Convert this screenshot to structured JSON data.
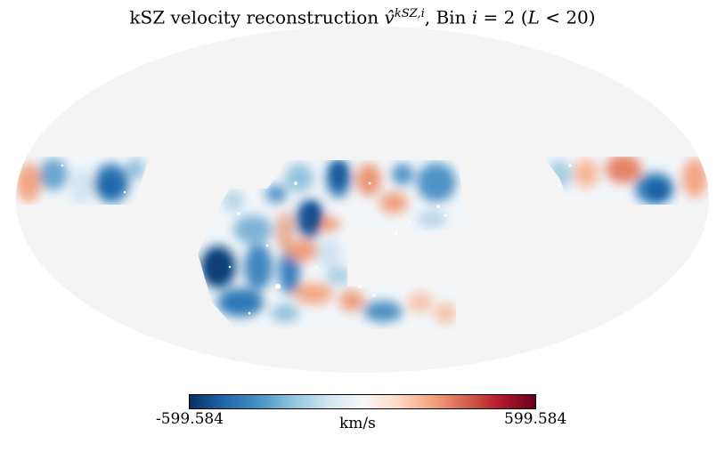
{
  "title": {
    "prefix": "kSZ velocity reconstruction ",
    "symbol": "v̂",
    "superscript": "kSZ,i",
    "suffix": ", Bin ",
    "bin_var": "i",
    "bin_eq": " = 2 (",
    "limit_var": "L",
    "limit_text": " < 20)"
  },
  "colorbar": {
    "min_label": "-599.584",
    "max_label": "599.584",
    "unit": "km/s",
    "colormap": [
      "#053061",
      "#2166ac",
      "#4393c3",
      "#92c5de",
      "#d1e5f0",
      "#f7f7f7",
      "#fddbc7",
      "#f4a582",
      "#d6604d",
      "#b2182b",
      "#67001f"
    ]
  },
  "map": {
    "projection": "Mollweide",
    "masked_color": "#f4f4f4"
  }
}
